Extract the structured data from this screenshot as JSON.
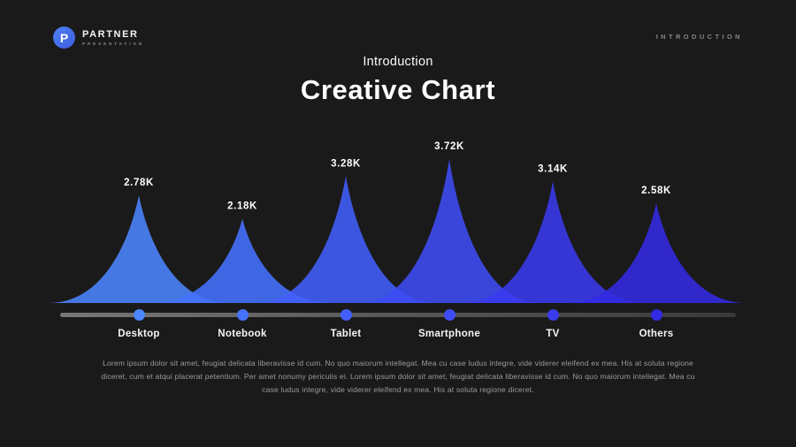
{
  "header": {
    "logo": {
      "monogram": "P",
      "brand": "PARTNER",
      "tagline": "PRESENTATION"
    },
    "section_label": "INTRODUCTION"
  },
  "title": {
    "subtitle": "Introduction",
    "heading": "Creative Chart"
  },
  "chart_data": {
    "type": "area",
    "title": "Creative Chart",
    "categories": [
      "Desktop",
      "Notebook",
      "Tablet",
      "Smartphone",
      "TV",
      "Others"
    ],
    "values": [
      2.78,
      2.18,
      3.28,
      3.72,
      3.14,
      2.58
    ],
    "value_labels": [
      "2.78K",
      "2.18K",
      "3.28K",
      "3.72K",
      "3.14K",
      "2.58K"
    ],
    "unit": "K",
    "ylim": [
      0,
      4.2
    ],
    "grid": false,
    "legend": "none",
    "colors": [
      "#4C85FF",
      "#4672FF",
      "#425EFA",
      "#3F4CF5",
      "#3A3AEE",
      "#332AE4"
    ],
    "background": "#1a1a1a",
    "track_colors": {
      "start": "#787878",
      "end": "#3a3a3a"
    }
  },
  "body_text": "Lorem ipsum dolor sit amet, feugiat delicata liberavisse id cum. No quo maiorum intellegat. Mea cu case ludus integre, vide viderer eleifend ex mea. His at soluta regione diceret, cum et atqui placerat petentium. Per amet nonumy periculis ei. Lorem ipsum dolor sit amet, feugiat delicata liberavisse id cum. No quo maiorum intellegat. Mea cu case ludus integre, vide viderer eleifend ex mea. His at soluta regione diceret."
}
